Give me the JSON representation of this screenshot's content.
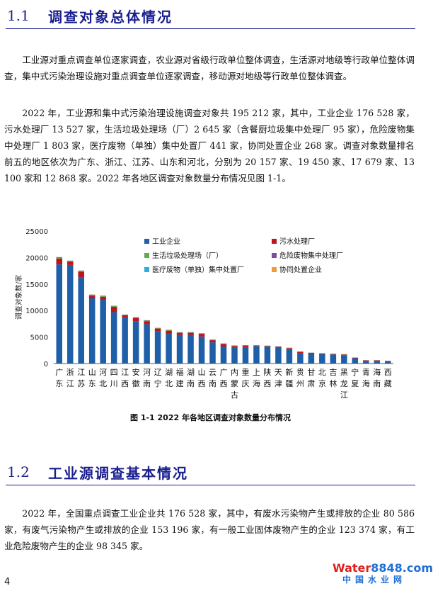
{
  "section_1": {
    "number": "1.1",
    "title": "调查对象总体情况"
  },
  "section_2": {
    "number": "1.2",
    "title": "工业源调查基本情况"
  },
  "paragraphs": [
    "工业源对重点调查单位逐家调查，农业源对省级行政单位整体调查，生活源对地级等行政单位整体调查，集中式污染治理设施对重点调查单位逐家调查，移动源对地级等行政单位整体调查。",
    "2022 年，工业源和集中式污染治理设施调查对象共 195 212 家，其中，工业企业 176 528 家，污水处理厂 13 527 家，生活垃圾处理场（厂）2 645 家（含餐厨垃圾集中处理厂 95 家），危险废物集中处理厂 1 803 家，医疗废物（单独）集中处置厂 441 家，协同处置企业 268 家。调查对象数量排名前五的地区依次为广东、浙江、江苏、山东和河北，分别为 20 157 家、19 450 家、17 679 家、13 100 家和 12 868 家。2022 年各地区调查对象数量分布情况见图 1-1。",
    "2022 年，全国重点调查工业企业共 176 528 家，其中，有废水污染物产生或排放的企业 80 586 家，有废气污染物产生或排放的企业 153 196 家，有一般工业固体废物产生的企业 123 374 家，有工业危险废物产生的企业 98 345 家。"
  ],
  "figure_caption": "图 1-1   2022 年各地区调查对象数量分布情况",
  "page_number": "4",
  "watermark": {
    "brand": "Water8848.com",
    "brand_water": "Water",
    "brand_num": "8848",
    "brand_dot": ".com",
    "subtitle": "中国水业网"
  },
  "chart_data": {
    "type": "bar",
    "stacked": true,
    "ylabel": "调查对象数/家",
    "ylim": [
      0,
      25000
    ],
    "yticks": [
      0,
      5000,
      10000,
      15000,
      20000,
      25000
    ],
    "legend_position": "top-right",
    "categories": [
      "广东",
      "浙江",
      "江苏",
      "山东",
      "河北",
      "四川",
      "江西",
      "安徽",
      "河南",
      "辽宁",
      "湖北",
      "福建",
      "湖南",
      "山西",
      "云南",
      "广西",
      "内蒙古",
      "重庆",
      "上海",
      "陕西",
      "天津",
      "新疆",
      "贵州",
      "甘肃",
      "北京",
      "吉林",
      "黑龙江",
      "宁夏",
      "青海",
      "海南",
      "西藏"
    ],
    "category_labels": [
      [
        "广",
        "东"
      ],
      [
        "浙",
        "江"
      ],
      [
        "江",
        "苏"
      ],
      [
        "山",
        "东"
      ],
      [
        "河",
        "北"
      ],
      [
        "四",
        "川"
      ],
      [
        "江",
        "西"
      ],
      [
        "安",
        "徽"
      ],
      [
        "河",
        "南"
      ],
      [
        "辽",
        "宁"
      ],
      [
        "湖",
        "北"
      ],
      [
        "福",
        "建"
      ],
      [
        "湖",
        "南"
      ],
      [
        "山",
        "西"
      ],
      [
        "云",
        "南"
      ],
      [
        "广",
        "西"
      ],
      [
        "内",
        "蒙",
        "古"
      ],
      [
        "重",
        "庆"
      ],
      [
        "上",
        "海"
      ],
      [
        "陕",
        "西"
      ],
      [
        "天",
        "津"
      ],
      [
        "新",
        "疆"
      ],
      [
        "贵",
        "州"
      ],
      [
        "甘",
        "肃"
      ],
      [
        "北",
        "京"
      ],
      [
        "吉",
        "林"
      ],
      [
        "黑",
        "龙",
        "江"
      ],
      [
        "宁",
        "夏"
      ],
      [
        "青",
        "海"
      ],
      [
        "海",
        "南"
      ],
      [
        "西",
        "藏"
      ]
    ],
    "series": [
      {
        "name": "工业企业",
        "color": "#1f5fa8",
        "values": [
          18700,
          18600,
          16300,
          12300,
          12100,
          9700,
          8700,
          8000,
          7400,
          6100,
          5600,
          5400,
          5400,
          5100,
          4000,
          3200,
          3000,
          3100,
          3300,
          3200,
          3100,
          2700,
          1900,
          1800,
          1800,
          1700,
          1500,
          1000,
          500,
          500,
          400
        ]
      },
      {
        "name": "污水处理厂",
        "color": "#c0141c",
        "values": [
          1100,
          600,
          1000,
          500,
          500,
          1000,
          400,
          600,
          600,
          500,
          600,
          400,
          400,
          500,
          400,
          500,
          300,
          300,
          100,
          100,
          100,
          200,
          300,
          200,
          100,
          100,
          200,
          100,
          100,
          100,
          80
        ]
      },
      {
        "name": "生活垃圾处理场（厂）",
        "color": "#6aa84f",
        "values": [
          150,
          120,
          120,
          100,
          100,
          120,
          90,
          90,
          100,
          80,
          90,
          70,
          80,
          70,
          80,
          60,
          60,
          40,
          20,
          40,
          20,
          50,
          50,
          40,
          20,
          30,
          40,
          20,
          20,
          20,
          20
        ]
      },
      {
        "name": "危险废物集中处理厂",
        "color": "#7b4fa0",
        "values": [
          120,
          80,
          100,
          100,
          80,
          60,
          50,
          50,
          60,
          50,
          50,
          40,
          40,
          40,
          40,
          30,
          40,
          30,
          30,
          30,
          30,
          30,
          30,
          20,
          20,
          20,
          20,
          20,
          10,
          10,
          5
        ]
      },
      {
        "name": "医疗废物（单独）集中处置厂",
        "color": "#2eaee0",
        "values": [
          20,
          10,
          15,
          15,
          15,
          25,
          10,
          15,
          15,
          10,
          15,
          10,
          10,
          15,
          15,
          15,
          15,
          5,
          3,
          10,
          3,
          15,
          10,
          10,
          3,
          10,
          10,
          5,
          5,
          5,
          5
        ]
      },
      {
        "name": "协同处置企业",
        "color": "#f39a3a",
        "values": [
          10,
          15,
          20,
          15,
          10,
          15,
          10,
          10,
          15,
          10,
          10,
          5,
          10,
          10,
          10,
          5,
          10,
          5,
          5,
          10,
          5,
          5,
          5,
          5,
          5,
          5,
          5,
          3,
          3,
          2,
          1
        ]
      }
    ]
  }
}
